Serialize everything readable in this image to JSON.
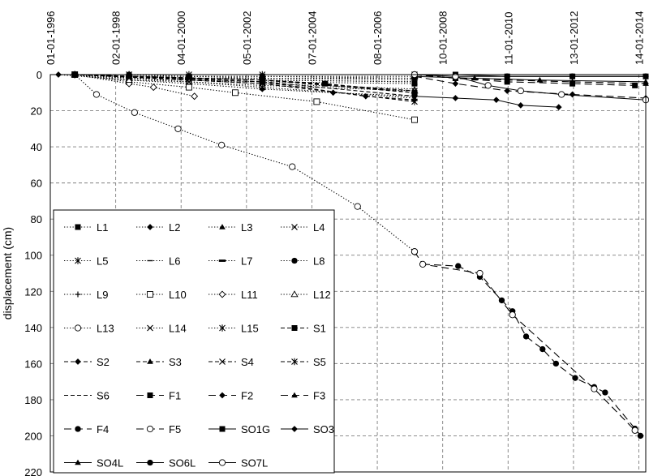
{
  "chart_data": {
    "type": "line",
    "title": "",
    "xlabel": "",
    "ylabel": "displacement (cm)",
    "x_ticks": [
      "01-01-1996",
      "02-01-1998",
      "04-01-2000",
      "05-01-2002",
      "07-01-2004",
      "08-01-2006",
      "10-01-2008",
      "11-01-2010",
      "13-01-2012",
      "14-01-2014"
    ],
    "x_range": [
      "1996-01-01",
      "2014-04-01"
    ],
    "y_ticks": [
      0,
      20,
      40,
      60,
      80,
      100,
      120,
      140,
      160,
      180,
      200,
      220
    ],
    "ylim": [
      220,
      0
    ],
    "y_inverted": true,
    "grid": "dashed",
    "legend_position": "bottom-left",
    "series": [
      {
        "name": "L1",
        "marker": "square-filled",
        "line": "dotted",
        "points": [
          [
            "1996-10-01",
            0
          ],
          [
            "1998-06-01",
            2
          ],
          [
            "2000-04-01",
            3
          ],
          [
            "2002-07-01",
            4
          ],
          [
            "2007-03-01",
            5
          ]
        ]
      },
      {
        "name": "L2",
        "marker": "diamond-filled",
        "line": "dotted",
        "points": [
          [
            "1996-04-01",
            0
          ],
          [
            "1998-06-01",
            3
          ],
          [
            "2000-04-01",
            5
          ],
          [
            "2002-07-01",
            8
          ],
          [
            "2004-09-01",
            10
          ],
          [
            "2007-03-01",
            12
          ]
        ]
      },
      {
        "name": "L3",
        "marker": "triangle-filled",
        "line": "dotted",
        "points": [
          [
            "1996-10-01",
            0
          ],
          [
            "1998-06-01",
            2
          ],
          [
            "2000-04-01",
            3
          ],
          [
            "2002-07-01",
            5
          ],
          [
            "2007-03-01",
            8
          ]
        ]
      },
      {
        "name": "L4",
        "marker": "x",
        "line": "dotted",
        "points": [
          [
            "1996-10-01",
            0
          ],
          [
            "1998-06-01",
            1
          ],
          [
            "2000-04-01",
            2
          ],
          [
            "2002-07-01",
            3
          ],
          [
            "2007-03-01",
            4
          ]
        ]
      },
      {
        "name": "L5",
        "marker": "star",
        "line": "dotted",
        "points": [
          [
            "1996-10-01",
            0
          ],
          [
            "1998-06-01",
            0
          ],
          [
            "2000-04-01",
            1
          ],
          [
            "2002-07-01",
            1
          ],
          [
            "2007-03-01",
            2
          ]
        ]
      },
      {
        "name": "L6",
        "marker": "dash",
        "line": "dotted",
        "points": [
          [
            "1996-10-01",
            0
          ],
          [
            "1998-06-01",
            1
          ],
          [
            "2000-04-01",
            2
          ],
          [
            "2002-07-01",
            2
          ],
          [
            "2007-03-01",
            3
          ]
        ]
      },
      {
        "name": "L7",
        "marker": "bar",
        "line": "dotted",
        "points": [
          [
            "1996-10-01",
            0
          ],
          [
            "1998-06-01",
            1
          ],
          [
            "2000-04-01",
            1
          ],
          [
            "2002-07-01",
            2
          ],
          [
            "2007-03-01",
            2
          ]
        ]
      },
      {
        "name": "L8",
        "marker": "circle-filled",
        "line": "dotted",
        "points": [
          [
            "1996-10-01",
            0
          ],
          [
            "1998-06-01",
            0
          ],
          [
            "2000-04-01",
            1
          ],
          [
            "2002-07-01",
            1
          ],
          [
            "2007-03-01",
            1
          ]
        ]
      },
      {
        "name": "L9",
        "marker": "plus",
        "line": "dotted",
        "points": [
          [
            "1996-10-01",
            0
          ],
          [
            "1998-06-01",
            1
          ],
          [
            "2000-04-01",
            2
          ],
          [
            "2002-07-01",
            3
          ],
          [
            "2007-03-01",
            4
          ]
        ]
      },
      {
        "name": "L10",
        "marker": "square-open",
        "line": "dotted",
        "points": [
          [
            "1996-10-01",
            0
          ],
          [
            "1998-06-01",
            4
          ],
          [
            "2000-04-01",
            7
          ],
          [
            "2001-09-01",
            10
          ],
          [
            "2004-03-01",
            15
          ],
          [
            "2007-03-01",
            25
          ]
        ]
      },
      {
        "name": "L11",
        "marker": "diamond-open",
        "line": "dotted",
        "points": [
          [
            "1996-10-01",
            0
          ],
          [
            "1998-06-01",
            5
          ],
          [
            "1999-03-01",
            7
          ],
          [
            "2000-06-01",
            12
          ]
        ]
      },
      {
        "name": "L12",
        "marker": "triangle-open",
        "line": "dotted",
        "points": [
          [
            "1996-10-01",
            0
          ],
          [
            "1998-06-01",
            3
          ],
          [
            "2000-04-01",
            4
          ],
          [
            "2002-07-01",
            6
          ],
          [
            "2007-03-01",
            9
          ]
        ]
      },
      {
        "name": "L13",
        "marker": "circle-open",
        "line": "dotted",
        "points": [
          [
            "1996-10-01",
            0
          ],
          [
            "1997-06-01",
            11
          ],
          [
            "1998-08-01",
            21
          ],
          [
            "1999-12-01",
            30
          ],
          [
            "2001-04-01",
            39
          ],
          [
            "2003-06-01",
            51
          ],
          [
            "2005-06-01",
            73
          ],
          [
            "2007-03-01",
            98
          ]
        ]
      },
      {
        "name": "L14",
        "marker": "x",
        "line": "dotted",
        "points": [
          [
            "1996-10-01",
            0
          ],
          [
            "1998-06-01",
            2
          ],
          [
            "2000-04-01",
            4
          ],
          [
            "2002-07-01",
            7
          ],
          [
            "2007-03-01",
            13
          ]
        ]
      },
      {
        "name": "L15",
        "marker": "star",
        "line": "dotted",
        "points": [
          [
            "1996-10-01",
            0
          ],
          [
            "1998-06-01",
            0
          ],
          [
            "2000-04-01",
            0
          ],
          [
            "2002-07-01",
            0
          ],
          [
            "2007-03-01",
            0
          ]
        ]
      },
      {
        "name": "S1",
        "marker": "square-filled",
        "line": "dashed",
        "points": [
          [
            "1996-10-01",
            0
          ],
          [
            "2002-07-01",
            3
          ],
          [
            "2004-06-01",
            5
          ],
          [
            "2007-03-01",
            10
          ]
        ]
      },
      {
        "name": "S2",
        "marker": "diamond-filled",
        "line": "dashed",
        "points": [
          [
            "1996-10-01",
            0
          ],
          [
            "2002-07-01",
            4
          ],
          [
            "2005-09-01",
            12
          ],
          [
            "2007-03-01",
            14
          ]
        ]
      },
      {
        "name": "S3",
        "marker": "triangle-filled",
        "line": "dashed",
        "points": [
          [
            "1996-10-01",
            0
          ],
          [
            "2002-07-01",
            3
          ],
          [
            "2007-03-01",
            10
          ]
        ]
      },
      {
        "name": "S4",
        "marker": "x",
        "line": "dashed",
        "points": [
          [
            "1996-10-01",
            0
          ],
          [
            "2002-07-01",
            3
          ],
          [
            "2007-03-01",
            9
          ]
        ]
      },
      {
        "name": "S5",
        "marker": "star",
        "line": "dashed",
        "points": [
          [
            "1996-10-01",
            0
          ],
          [
            "2002-07-01",
            5
          ],
          [
            "2007-03-01",
            15
          ]
        ]
      },
      {
        "name": "S6",
        "marker": "none",
        "line": "dashed",
        "points": [
          [
            "1996-10-01",
            0
          ],
          [
            "2002-07-01",
            4
          ],
          [
            "2007-03-01",
            12
          ]
        ]
      },
      {
        "name": "F1",
        "marker": "square-filled",
        "line": "long-dashed",
        "points": [
          [
            "2007-03-01",
            0
          ],
          [
            "2008-06-01",
            2
          ],
          [
            "2010-01-01",
            4
          ],
          [
            "2012-01-01",
            5
          ],
          [
            "2013-12-01",
            6
          ]
        ]
      },
      {
        "name": "F2",
        "marker": "diamond-filled",
        "line": "long-dashed",
        "points": [
          [
            "2007-03-01",
            1
          ],
          [
            "2008-06-01",
            5
          ],
          [
            "2010-01-01",
            9
          ],
          [
            "2012-01-01",
            11
          ],
          [
            "2014-04-01",
            13
          ]
        ]
      },
      {
        "name": "F3",
        "marker": "triangle-filled",
        "line": "long-dashed",
        "points": [
          [
            "2007-03-01",
            0
          ],
          [
            "2008-06-01",
            2
          ],
          [
            "2010-01-01",
            3
          ],
          [
            "2012-01-01",
            4
          ],
          [
            "2014-04-01",
            5
          ]
        ]
      },
      {
        "name": "F4",
        "marker": "circle-filled",
        "line": "long-dashed",
        "points": [
          [
            "2007-06-01",
            105
          ],
          [
            "2008-07-01",
            106
          ],
          [
            "2009-03-01",
            112
          ],
          [
            "2009-11-01",
            125
          ],
          [
            "2010-03-01",
            131
          ],
          [
            "2010-08-01",
            145
          ],
          [
            "2011-02-01",
            152
          ],
          [
            "2011-07-01",
            160
          ],
          [
            "2012-02-01",
            168
          ],
          [
            "2012-09-01",
            173
          ],
          [
            "2013-01-01",
            176
          ],
          [
            "2013-12-01",
            196
          ],
          [
            "2014-02-01",
            200
          ]
        ]
      },
      {
        "name": "F5",
        "marker": "circle-open",
        "line": "long-dashed",
        "points": [
          [
            "2007-03-01",
            98
          ],
          [
            "2007-06-01",
            105
          ],
          [
            "2009-03-01",
            110
          ],
          [
            "2010-03-01",
            133
          ],
          [
            "2012-09-01",
            174
          ],
          [
            "2013-12-01",
            197
          ]
        ]
      },
      {
        "name": "SO1G",
        "marker": "square-filled",
        "line": "solid",
        "points": [
          [
            "2007-03-01",
            0
          ],
          [
            "2008-06-01",
            0
          ],
          [
            "2010-01-01",
            1
          ],
          [
            "2012-01-01",
            1
          ],
          [
            "2014-04-01",
            1
          ]
        ]
      },
      {
        "name": "SO3",
        "marker": "diamond-filled",
        "line": "solid",
        "points": [
          [
            "2007-03-01",
            12
          ],
          [
            "2008-06-01",
            13
          ],
          [
            "2009-09-01",
            14
          ],
          [
            "2010-06-01",
            17
          ],
          [
            "2011-08-01",
            18
          ]
        ]
      },
      {
        "name": "SO4L",
        "marker": "triangle-filled",
        "line": "solid",
        "points": [
          [
            "2007-03-01",
            1
          ],
          [
            "2009-01-01",
            2
          ],
          [
            "2011-01-01",
            3
          ],
          [
            "2014-04-01",
            4
          ]
        ]
      },
      {
        "name": "SO6L",
        "marker": "circle-filled",
        "line": "solid",
        "points": [
          [
            "2007-03-01",
            0
          ],
          [
            "2008-06-01",
            1
          ],
          [
            "2010-01-01",
            1
          ],
          [
            "2012-01-01",
            1
          ],
          [
            "2014-04-01",
            1
          ]
        ]
      },
      {
        "name": "SO7L",
        "marker": "circle-open",
        "line": "solid",
        "points": [
          [
            "2007-03-01",
            0
          ],
          [
            "2008-06-01",
            1
          ],
          [
            "2009-06-01",
            6
          ],
          [
            "2010-06-01",
            9
          ],
          [
            "2011-09-01",
            11
          ],
          [
            "2014-04-01",
            14
          ]
        ]
      }
    ]
  }
}
